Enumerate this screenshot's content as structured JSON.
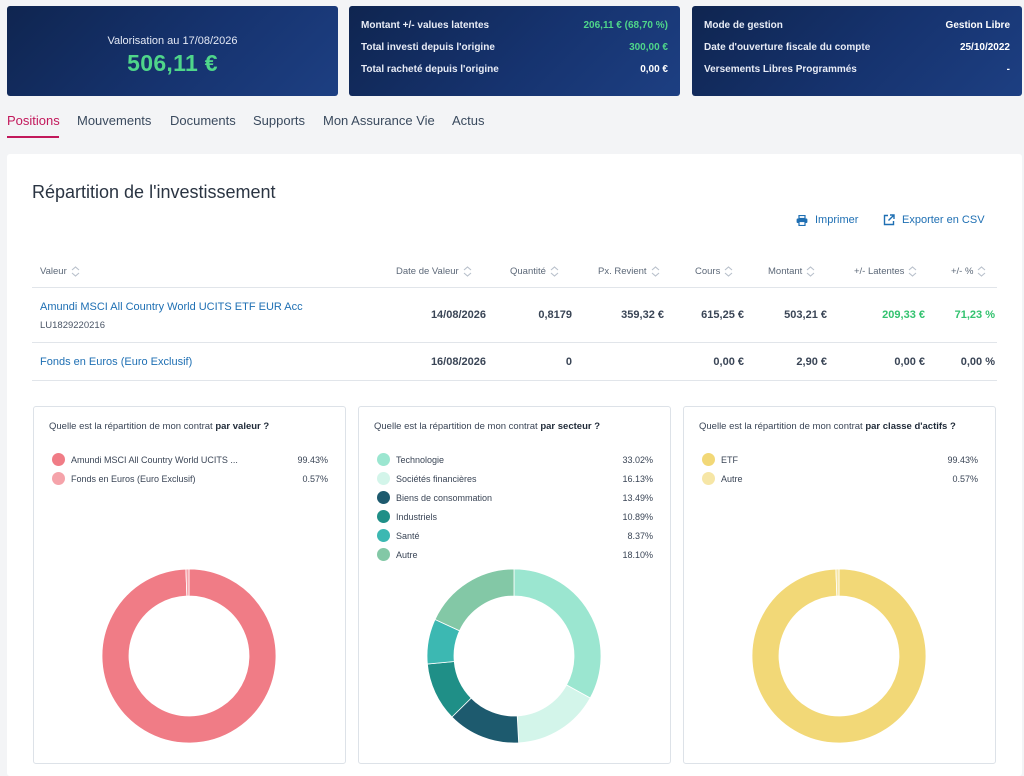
{
  "valuation": {
    "label": "Valorisation au 17/08/2026",
    "amount": "506,11 €"
  },
  "summary": [
    {
      "label": "Montant +/- values latentes",
      "value": "206,11 € (68,70 %)",
      "color": "#4fd68a"
    },
    {
      "label": "Total investi depuis l'origine",
      "value": "300,00 €",
      "color": "#4fd68a"
    },
    {
      "label": "Total racheté depuis l'origine",
      "value": "0,00 €",
      "color": "#ffffff"
    }
  ],
  "account": [
    {
      "label": "Mode de gestion",
      "value": "Gestion Libre"
    },
    {
      "label": "Date d'ouverture fiscale du compte",
      "value": "25/10/2022"
    },
    {
      "label": "Versements Libres Programmés",
      "value": "-"
    }
  ],
  "tabs": [
    "Positions",
    "Mouvements",
    "Documents",
    "Supports",
    "Mon Assurance Vie",
    "Actus"
  ],
  "active_tab": "Positions",
  "section": {
    "title": "Répartition de l'investissement",
    "print_label": "Imprimer",
    "export_label": "Exporter en CSV"
  },
  "table": {
    "headers": [
      "Valeur",
      "Date de Valeur",
      "Quantité",
      "Px. Revient",
      "Cours",
      "Montant",
      "+/- Latentes",
      "+/- %"
    ],
    "rows": [
      {
        "name": "Amundi MSCI All Country World UCITS ETF EUR Acc",
        "isin": "LU1829220216",
        "date": "14/08/2026",
        "qty": "0,8179",
        "px": "359,32 €",
        "cours": "615,25 €",
        "montant": "503,21 €",
        "latentes": "209,33 €",
        "pct": "71,23 %"
      },
      {
        "name": "Fonds en Euros (Euro Exclusif)",
        "isin": "",
        "date": "16/08/2026",
        "qty": "0",
        "px": "",
        "cours": "0,00 €",
        "montant": "2,90 €",
        "latentes": "0,00 €",
        "pct": "0,00 %"
      }
    ]
  },
  "pies": [
    {
      "question": "Quelle est la répartition de mon contrat ",
      "question_bold": "par valeur ?",
      "items": [
        {
          "label": "Amundi MSCI All Country World UCITS ...",
          "value": "99.43%",
          "pct": 99.43,
          "color": "#f07c86"
        },
        {
          "label": "Fonds en Euros (Euro Exclusif)",
          "value": "0.57%",
          "pct": 0.57,
          "color": "#f5a3aa"
        }
      ]
    },
    {
      "question": "Quelle est la répartition de mon contrat ",
      "question_bold": "par secteur ?",
      "items": [
        {
          "label": "Technologie",
          "value": "33.02%",
          "pct": 33.02,
          "color": "#9be6d0"
        },
        {
          "label": "Sociétés financières",
          "value": "16.13%",
          "pct": 16.13,
          "color": "#d3f5ea"
        },
        {
          "label": "Biens de consommation",
          "value": "13.49%",
          "pct": 13.49,
          "color": "#1d5a6e"
        },
        {
          "label": "Industriels",
          "value": "10.89%",
          "pct": 10.89,
          "color": "#1f8f87"
        },
        {
          "label": "Santé",
          "value": "8.37%",
          "pct": 8.37,
          "color": "#3cb8b2"
        },
        {
          "label": "Autre",
          "value": "18.10%",
          "pct": 18.1,
          "color": "#83c8a6"
        }
      ]
    },
    {
      "question": "Quelle est la répartition de mon contrat ",
      "question_bold": "par classe d'actifs ?",
      "items": [
        {
          "label": "ETF",
          "value": "99.43%",
          "pct": 99.43,
          "color": "#f2d877"
        },
        {
          "label": "Autre",
          "value": "0.57%",
          "pct": 0.57,
          "color": "#f6e6a6"
        }
      ]
    }
  ]
}
